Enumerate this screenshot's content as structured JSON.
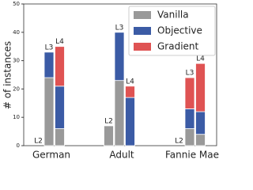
{
  "chart_data": {
    "type": "grouped-stacked-bar",
    "y_label": "# of instances",
    "categories": [
      "German",
      "Adult",
      "Fannie Mae"
    ],
    "bar_labels": [
      "L2",
      "L3",
      "L4"
    ],
    "series": [
      {
        "name": "Vanilla",
        "color": "#999999",
        "values": [
          [
            0,
            24,
            6
          ],
          [
            7,
            23,
            0
          ],
          [
            0,
            6,
            4
          ]
        ]
      },
      {
        "name": "Objective",
        "color": "#3b5ba5",
        "values": [
          [
            0,
            9,
            15
          ],
          [
            0,
            17,
            17
          ],
          [
            0,
            7,
            8
          ]
        ]
      },
      {
        "name": "Gradient",
        "color": "#df5353",
        "values": [
          [
            0,
            0,
            14
          ],
          [
            0,
            0,
            4
          ],
          [
            0,
            11,
            17
          ]
        ]
      }
    ],
    "ylim": [
      0,
      50
    ],
    "yticks": [
      0,
      10,
      20,
      30,
      40,
      50
    ],
    "legend": "upper right"
  }
}
